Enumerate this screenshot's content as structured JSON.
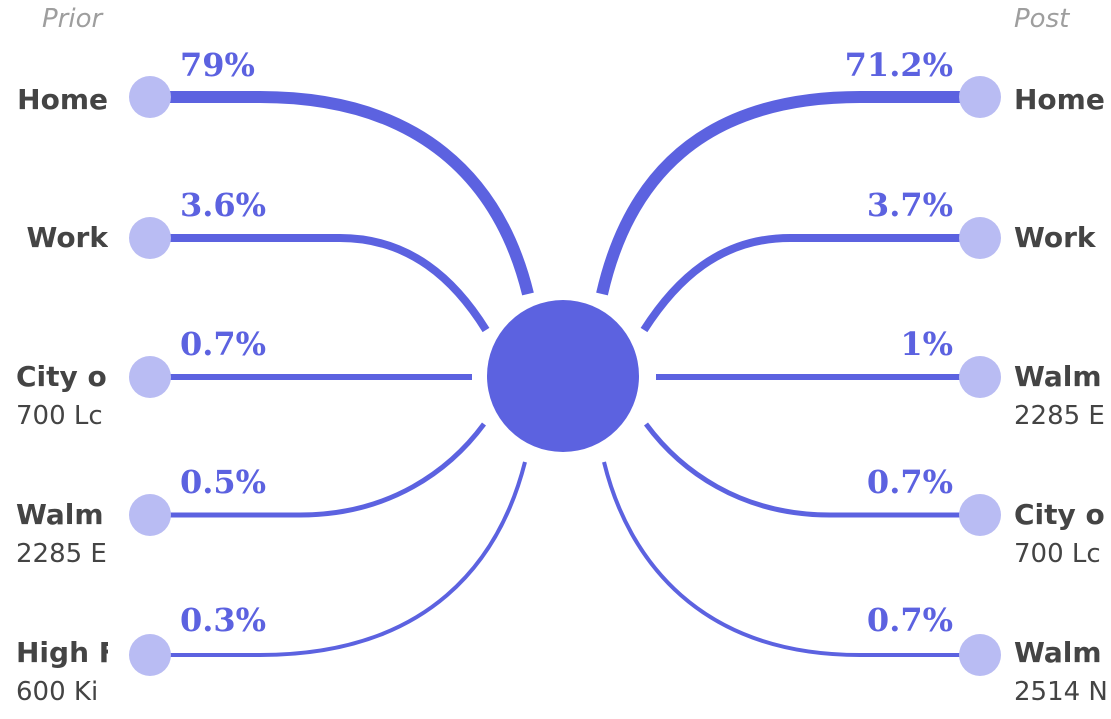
{
  "titles": {
    "prior": "Prior",
    "post": "Post"
  },
  "colors": {
    "flow": "#5c62e0",
    "node": "#b9bcf3",
    "center": "#5c62e0",
    "text": "#444444",
    "title": "#9e9e9e"
  },
  "prior": [
    {
      "name": "Home",
      "address": "",
      "percent": "79%"
    },
    {
      "name": "Work",
      "address": "",
      "percent": "3.6%"
    },
    {
      "name": "City o",
      "address": "700 Lc",
      "percent": "0.7%"
    },
    {
      "name": "Walm",
      "address": "2285 E",
      "percent": "0.5%"
    },
    {
      "name": "High F",
      "address": "600 Ki",
      "percent": "0.3%"
    }
  ],
  "post": [
    {
      "name": "Home",
      "address": "",
      "percent": "71.2%"
    },
    {
      "name": "Work",
      "address": "",
      "percent": "3.7%"
    },
    {
      "name": "Walm",
      "address": "2285 E",
      "percent": "1%"
    },
    {
      "name": "City o",
      "address": "700 Lc",
      "percent": "0.7%"
    },
    {
      "name": "Walm",
      "address": "2514 N",
      "percent": "0.7%"
    }
  ]
}
